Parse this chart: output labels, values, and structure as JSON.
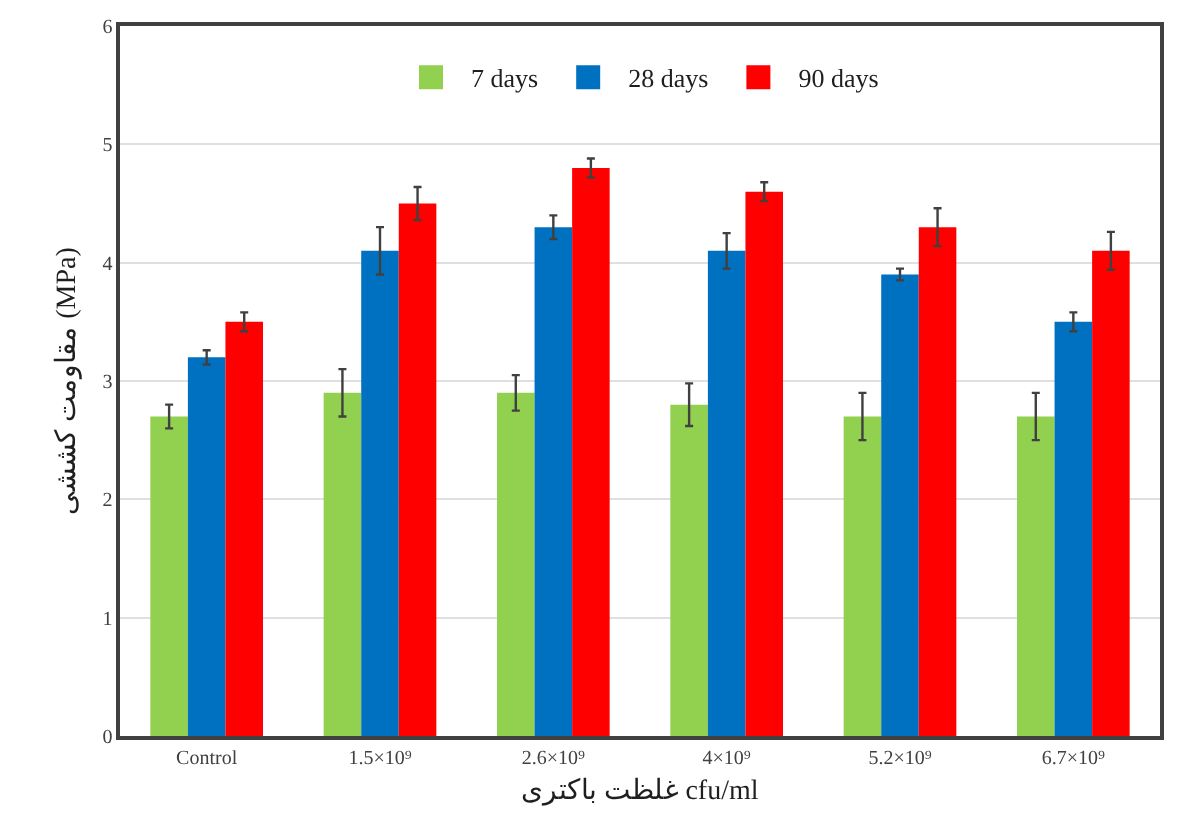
{
  "chart_data": {
    "type": "bar",
    "xlabel": "غلظت باکتری cfu/ml",
    "ylabel": "مقاومت کششی (MPa)",
    "categories": [
      "Control",
      "1.5×10⁹",
      "2.6×10⁹",
      "4×10⁹",
      "5.2×10⁹",
      "6.7×10⁹"
    ],
    "series": [
      {
        "name": "7 days",
        "color": "#92d050",
        "values": [
          2.7,
          2.9,
          2.9,
          2.8,
          2.7,
          2.7
        ],
        "errors": [
          0.1,
          0.2,
          0.15,
          0.18,
          0.2,
          0.2
        ]
      },
      {
        "name": "28 days",
        "color": "#0070c0",
        "values": [
          3.2,
          4.1,
          4.3,
          4.1,
          3.9,
          3.5
        ],
        "errors": [
          0.06,
          0.2,
          0.1,
          0.15,
          0.05,
          0.08
        ]
      },
      {
        "name": "90 days",
        "color": "#ff0000",
        "values": [
          3.5,
          4.5,
          4.8,
          4.6,
          4.3,
          4.1
        ],
        "errors": [
          0.08,
          0.14,
          0.08,
          0.08,
          0.16,
          0.16
        ]
      }
    ],
    "ylim": [
      0,
      6
    ],
    "yticks": [
      0,
      1,
      2,
      3,
      4,
      5,
      6
    ],
    "grid": "y",
    "legend": "top"
  }
}
